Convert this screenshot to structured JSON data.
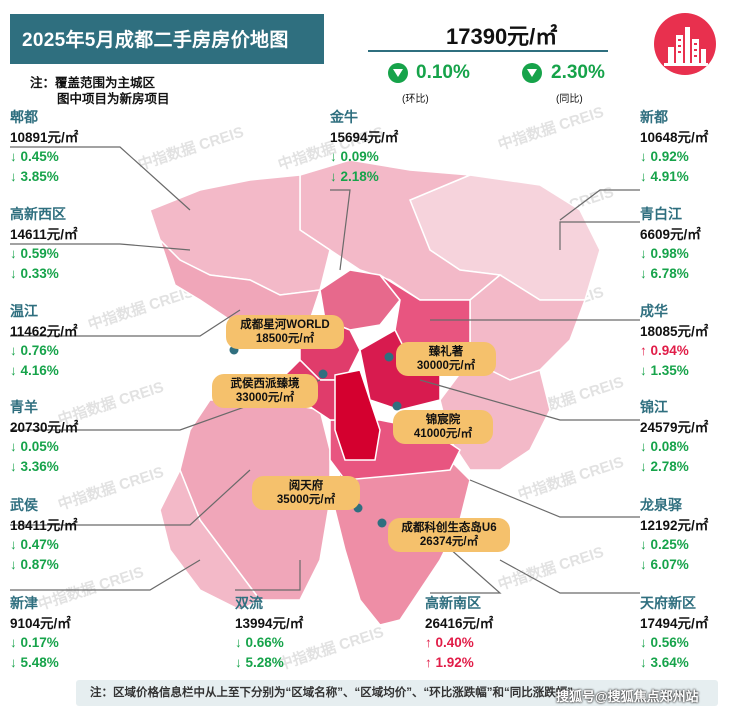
{
  "title": "2025年5月成都二手房房价地图",
  "notes": [
    "注：覆盖范围为主城区",
    "图中项目为新房项目"
  ],
  "summary": {
    "avg_price": "17390元/㎡",
    "mom": {
      "value": "0.10%",
      "label": "(环比)",
      "direction": "down"
    },
    "yoy": {
      "value": "2.30%",
      "label": "(同比)",
      "direction": "down"
    }
  },
  "colors": {
    "title_bg": "#2f6f7f",
    "down": "#16a34a",
    "up": "#e11d48",
    "project_label": "#f5c16c",
    "logo": "#e8304e"
  },
  "watermark": "中指数据 CREIS",
  "regions": {
    "pidu": {
      "name": "郫都",
      "price": "10891元/㎡",
      "mom": "0.45%",
      "yoy": "3.85%",
      "mom_dir": "down",
      "yoy_dir": "down"
    },
    "jinniu": {
      "name": "金牛",
      "price": "15694元/㎡",
      "mom": "0.09%",
      "yoy": "2.18%",
      "mom_dir": "down",
      "yoy_dir": "down"
    },
    "xindu": {
      "name": "新都",
      "price": "10648元/㎡",
      "mom": "0.92%",
      "yoy": "4.91%",
      "mom_dir": "down",
      "yoy_dir": "down"
    },
    "gaoxinxi": {
      "name": "高新西区",
      "price": "14611元/㎡",
      "mom": "0.59%",
      "yoy": "0.33%",
      "mom_dir": "down",
      "yoy_dir": "down"
    },
    "qingbaijiang": {
      "name": "青白江",
      "price": "6609元/㎡",
      "mom": "0.98%",
      "yoy": "6.78%",
      "mom_dir": "down",
      "yoy_dir": "down"
    },
    "wenjiang": {
      "name": "温江",
      "price": "11462元/㎡",
      "mom": "0.76%",
      "yoy": "4.16%",
      "mom_dir": "down",
      "yoy_dir": "down"
    },
    "chenghua": {
      "name": "成华",
      "price": "18085元/㎡",
      "mom": "0.94%",
      "yoy": "1.35%",
      "mom_dir": "up",
      "yoy_dir": "down"
    },
    "qingyang": {
      "name": "青羊",
      "price": "20730元/㎡",
      "mom": "0.05%",
      "yoy": "3.36%",
      "mom_dir": "down",
      "yoy_dir": "down"
    },
    "jinjiang": {
      "name": "锦江",
      "price": "24579元/㎡",
      "mom": "0.08%",
      "yoy": "2.78%",
      "mom_dir": "down",
      "yoy_dir": "down"
    },
    "wuhou": {
      "name": "武侯",
      "price": "18411元/㎡",
      "mom": "0.47%",
      "yoy": "0.87%",
      "mom_dir": "down",
      "yoy_dir": "down"
    },
    "longquanyi": {
      "name": "龙泉驿",
      "price": "12192元/㎡",
      "mom": "0.25%",
      "yoy": "6.07%",
      "mom_dir": "down",
      "yoy_dir": "down"
    },
    "xinjin": {
      "name": "新津",
      "price": "9104元/㎡",
      "mom": "0.17%",
      "yoy": "5.48%",
      "mom_dir": "down",
      "yoy_dir": "down"
    },
    "shuangliu": {
      "name": "双流",
      "price": "13994元/㎡",
      "mom": "0.66%",
      "yoy": "5.28%",
      "mom_dir": "down",
      "yoy_dir": "down"
    },
    "gaoxinnan": {
      "name": "高新南区",
      "price": "26416元/㎡",
      "mom": "0.40%",
      "yoy": "1.92%",
      "mom_dir": "up",
      "yoy_dir": "up"
    },
    "tianfu": {
      "name": "天府新区",
      "price": "17494元/㎡",
      "mom": "0.56%",
      "yoy": "3.64%",
      "mom_dir": "down",
      "yoy_dir": "down"
    }
  },
  "projects": [
    {
      "name": "成都星河WORLD",
      "price": "18500元/㎡"
    },
    {
      "name": "臻礼著",
      "price": "30000元/㎡"
    },
    {
      "name": "武侯西派臻境",
      "price": "33000元/㎡"
    },
    {
      "name": "锦宸院",
      "price": "41000元/㎡"
    },
    {
      "name": "阅天府",
      "price": "35000元/㎡"
    },
    {
      "name": "成都科创生态岛U6",
      "price": "26374元/㎡"
    }
  ],
  "footer_note": "注：区域价格信息栏中从上至下分别为“区域名称”、“区域均价”、“环比涨跌幅”和“同比涨跌幅”",
  "source_watermark": "搜狐号@搜狐焦点郑州站"
}
